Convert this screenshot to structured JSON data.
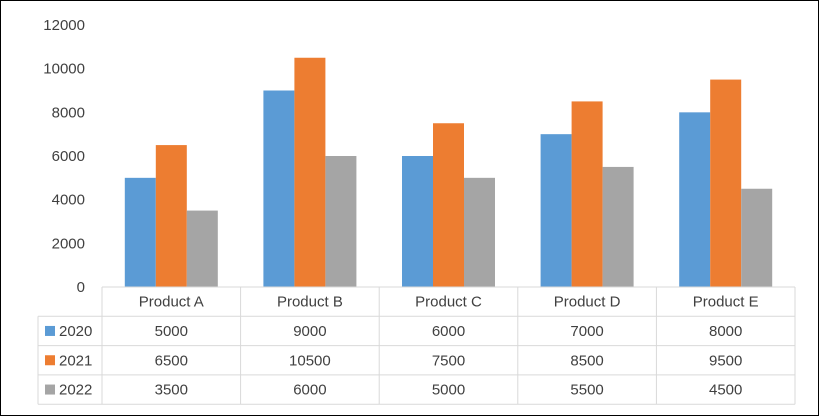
{
  "chart_data": {
    "type": "bar",
    "categories": [
      "Product A",
      "Product B",
      "Product C",
      "Product D",
      "Product E"
    ],
    "series": [
      {
        "name": "2020",
        "color": "#5B9BD5",
        "values": [
          5000,
          9000,
          6000,
          7000,
          8000
        ]
      },
      {
        "name": "2021",
        "color": "#ED7D31",
        "values": [
          6500,
          10500,
          7500,
          8500,
          9500
        ]
      },
      {
        "name": "2022",
        "color": "#A5A5A5",
        "values": [
          3500,
          6000,
          5000,
          5500,
          4500
        ]
      }
    ],
    "ylim": [
      0,
      12000
    ],
    "yticks": [
      0,
      2000,
      4000,
      6000,
      8000,
      10000,
      12000
    ],
    "grid": false,
    "legend": "data-table",
    "data_table": true
  }
}
